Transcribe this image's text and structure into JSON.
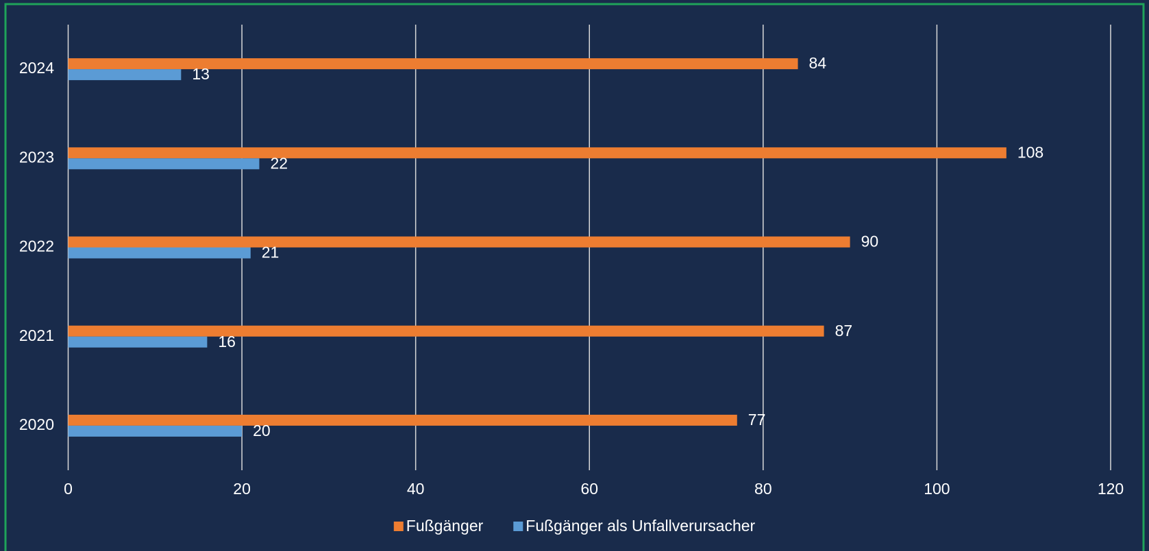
{
  "chart_data": {
    "type": "barh",
    "categories": [
      "2020",
      "2021",
      "2022",
      "2023",
      "2024"
    ],
    "series": [
      {
        "name": "Fußgänger",
        "color": "#ed7d31",
        "values": [
          77,
          87,
          90,
          108,
          84
        ]
      },
      {
        "name": "Fußgänger als Unfallverursacher",
        "color": "#5b9bd5",
        "values": [
          20,
          16,
          21,
          22,
          13
        ]
      }
    ],
    "xlim": [
      0,
      120
    ],
    "xticks": [
      0,
      20,
      40,
      60,
      80,
      100,
      120
    ],
    "grid": true,
    "legend": "bottom"
  }
}
